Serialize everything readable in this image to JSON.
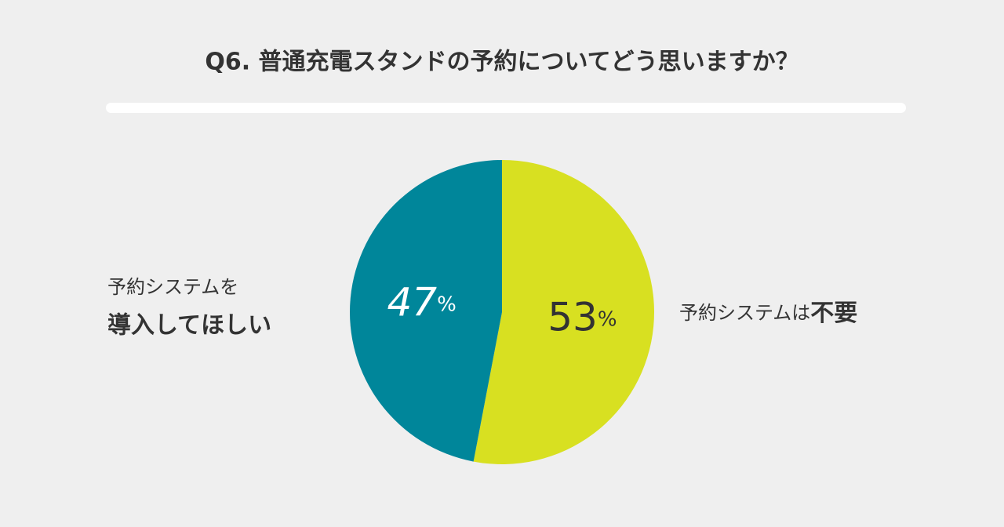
{
  "chart_data": {
    "type": "pie",
    "title": "Q6. 普通充電スタンドの予約についてどう思いますか？",
    "categories": [
      [
        "予約システムは",
        "不要"
      ],
      [
        "予約システムを",
        "導入してほしい"
      ]
    ],
    "values": [
      53,
      47
    ],
    "value_labels": [
      "53%",
      "47%"
    ],
    "colors": [
      "#d8e021",
      "#00869a"
    ]
  }
}
